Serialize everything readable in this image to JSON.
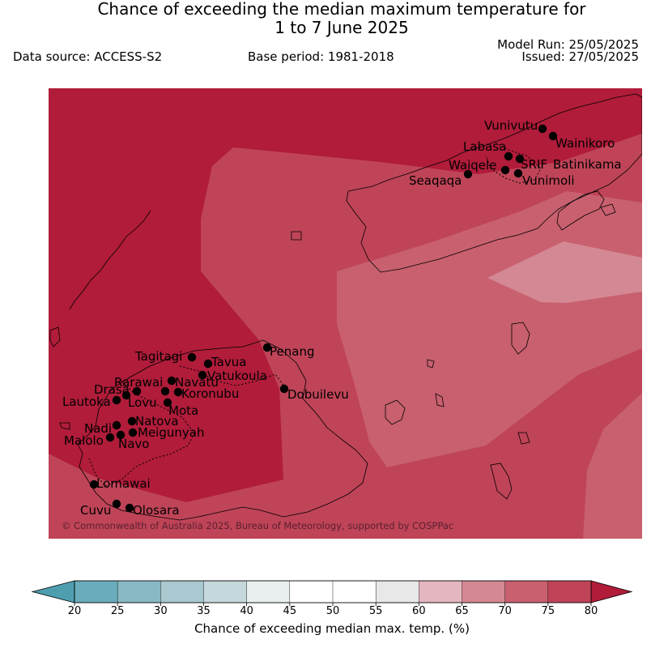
{
  "header": {
    "title_line1": "Chance of exceeding the median maximum temperature for",
    "title_line2": "1 to 7 June 2025",
    "model_run": "Model Run: 25/05/2025",
    "issued": "Issued: 27/05/2025",
    "data_source": "Data source: ACCESS-S2",
    "base_period": "Base period: 1981-2018"
  },
  "map": {
    "copyright": "© Commonwealth of Australia 2025, Bureau of Meteorology, supported by COSPPac",
    "stations": [
      "Vunivutu",
      "Wainikoro",
      "Labasa",
      "Waiqele",
      "SRIF",
      "Batinikama",
      "Seaqaqa",
      "Vunimoli",
      "Penang",
      "Tagitagi",
      "Tavua",
      "Vatukoula",
      "Rarawai",
      "Navatu",
      "Drasa",
      "Lautoka",
      "Lovu",
      "Koronubu",
      "Mota",
      "Dobuilevu",
      "Natova",
      "Nadi",
      "Meigunyah",
      "Malolo",
      "Navo",
      "Lomawai",
      "Cuvu",
      "Olosara"
    ]
  },
  "colorbar": {
    "title": "Chance of exceeding median max. temp. (%)",
    "ticks": [
      "20",
      "25",
      "30",
      "35",
      "40",
      "45",
      "50",
      "55",
      "60",
      "65",
      "70",
      "75",
      "80"
    ],
    "colors": [
      "#6aacbb",
      "#89b9c4",
      "#a9c8cf",
      "#c6d8dc",
      "#e9eef0",
      "#ffffff",
      "#ffffff",
      "#e8e8e8",
      "#e4b6bf",
      "#d48893",
      "#c8606f",
      "#bf4458"
    ],
    "under_color": "#4e9eb0",
    "over_color": "#b01c3a"
  },
  "palette": {
    "p80": "#b01c3a",
    "p75": "#bf4458",
    "p70": "#c8606f",
    "p65": "#d48893"
  }
}
